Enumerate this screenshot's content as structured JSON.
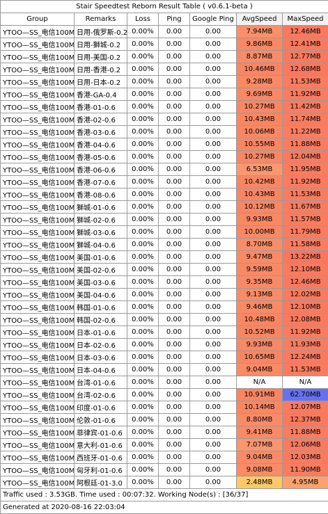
{
  "title": "Stair Speedtest Reborn Result Table ( v0.6.1-beta )",
  "columns": [
    "Group",
    "Remarks",
    "Loss",
    "Ping",
    "Google Ping",
    "AvgSpeed",
    "MaxSpeed"
  ],
  "rows": [
    {
      "group": "YTOO—SS_电信100M",
      "remarks": "日用-俄罗斯-0.2",
      "loss": "0.00%",
      "ping": "0.00",
      "gping": "0.00",
      "avg": "7.94MB",
      "max": "12.46MB",
      "avg_color": "#f9906a",
      "max_color": "#f9795f"
    },
    {
      "group": "YTOO—SS_电信100M",
      "remarks": "日用-獅城-0.2",
      "loss": "0.00%",
      "ping": "0.00",
      "gping": "0.00",
      "avg": "9.86MB",
      "max": "12.41MB",
      "avg_color": "#f98864",
      "max_color": "#f9795f"
    },
    {
      "group": "YTOO—SS_电信100M",
      "remarks": "日用-美国-0.2",
      "loss": "0.00%",
      "ping": "0.00",
      "gping": "0.00",
      "avg": "8.87MB",
      "max": "12.77MB",
      "avg_color": "#f98b67",
      "max_color": "#f9785e"
    },
    {
      "group": "YTOO—SS_电信100M",
      "remarks": "日用-香港-0.2",
      "loss": "0.00%",
      "ping": "0.00",
      "gping": "0.00",
      "avg": "10.46MB",
      "max": "12.68MB",
      "avg_color": "#f98663",
      "max_color": "#f9785e"
    },
    {
      "group": "YTOO—SS_电信100M",
      "remarks": "日用-日本-0.2",
      "loss": "0.00%",
      "ping": "0.00",
      "gping": "0.00",
      "avg": "9.28MB",
      "max": "11.53MB",
      "avg_color": "#f98a66",
      "max_color": "#f97c60"
    },
    {
      "group": "YTOO—SS_电信100M",
      "remarks": "香港-GA-0.4",
      "loss": "0.00%",
      "ping": "0.00",
      "gping": "0.00",
      "avg": "9.69MB",
      "max": "11.92MB",
      "avg_color": "#f98965",
      "max_color": "#f97b60"
    },
    {
      "group": "YTOO—SS_电信100M",
      "remarks": "香港-01-0.6",
      "loss": "0.00%",
      "ping": "0.00",
      "gping": "0.00",
      "avg": "10.27MB",
      "max": "11.42MB",
      "avg_color": "#f98763",
      "max_color": "#f97c61"
    },
    {
      "group": "YTOO—SS_电信100M",
      "remarks": "香港-02-0.6",
      "loss": "0.00%",
      "ping": "0.00",
      "gping": "0.00",
      "avg": "10.43MB",
      "max": "11.74MB",
      "avg_color": "#f98663",
      "max_color": "#f97b60"
    },
    {
      "group": "YTOO—SS_电信100M",
      "remarks": "香港-03-0.6",
      "loss": "0.00%",
      "ping": "0.00",
      "gping": "0.00",
      "avg": "10.06MB",
      "max": "11.22MB",
      "avg_color": "#f98764",
      "max_color": "#f97d61"
    },
    {
      "group": "YTOO—SS_电信100M",
      "remarks": "香港-04-0.6",
      "loss": "0.00%",
      "ping": "0.00",
      "gping": "0.00",
      "avg": "10.55MB",
      "max": "11.88MB",
      "avg_color": "#f98663",
      "max_color": "#f97b60"
    },
    {
      "group": "YTOO—SS_电信100M",
      "remarks": "香港-05-0.6",
      "loss": "0.00%",
      "ping": "0.00",
      "gping": "0.00",
      "avg": "10.27MB",
      "max": "12.04MB",
      "avg_color": "#f98763",
      "max_color": "#f97a5f"
    },
    {
      "group": "YTOO—SS_电信100M",
      "remarks": "香港-06-0.6",
      "loss": "0.00%",
      "ping": "0.00",
      "gping": "0.00",
      "avg": "6.53MB",
      "max": "11.95MB",
      "avg_color": "#fa9870",
      "max_color": "#f97b60"
    },
    {
      "group": "YTOO—SS_电信100M",
      "remarks": "香港-07-0.6",
      "loss": "0.00%",
      "ping": "0.00",
      "gping": "0.00",
      "avg": "10.42MB",
      "max": "11.92MB",
      "avg_color": "#f98663",
      "max_color": "#f97b60"
    },
    {
      "group": "YTOO—SS_电信100M",
      "remarks": "香港-08-0.6",
      "loss": "0.00%",
      "ping": "0.00",
      "gping": "0.00",
      "avg": "10.43MB",
      "max": "11.53MB",
      "avg_color": "#f98663",
      "max_color": "#f97c60"
    },
    {
      "group": "YTOO—SS_电信100M",
      "remarks": "獅城-01-0.6",
      "loss": "0.00%",
      "ping": "0.00",
      "gping": "0.00",
      "avg": "10.12MB",
      "max": "11.67MB",
      "avg_color": "#f98764",
      "max_color": "#f97c60"
    },
    {
      "group": "YTOO—SS_电信100M",
      "remarks": "獅城-02-0.6",
      "loss": "0.00%",
      "ping": "0.00",
      "gping": "0.00",
      "avg": "9.93MB",
      "max": "11.57MB",
      "avg_color": "#f98864",
      "max_color": "#f97c60"
    },
    {
      "group": "YTOO—SS_电信100M",
      "remarks": "獅城-03-0.6",
      "loss": "0.00%",
      "ping": "0.00",
      "gping": "0.00",
      "avg": "10.00MB",
      "max": "11.79MB",
      "avg_color": "#f98864",
      "max_color": "#f97b60"
    },
    {
      "group": "YTOO—SS_电信100M",
      "remarks": "獅城-04-0.6",
      "loss": "0.00%",
      "ping": "0.00",
      "gping": "0.00",
      "avg": "8.70MB",
      "max": "11.58MB",
      "avg_color": "#f98d68",
      "max_color": "#f97c60"
    },
    {
      "group": "YTOO—SS_电信100M",
      "remarks": "美国-01-0.6",
      "loss": "0.00%",
      "ping": "0.00",
      "gping": "0.00",
      "avg": "9.47MB",
      "max": "13.22MB",
      "avg_color": "#f98a65",
      "max_color": "#f9765d"
    },
    {
      "group": "YTOO—SS_电信100M",
      "remarks": "美国-02-0.6",
      "loss": "0.00%",
      "ping": "0.00",
      "gping": "0.00",
      "avg": "9.59MB",
      "max": "12.10MB",
      "avg_color": "#f98965",
      "max_color": "#f97a5f"
    },
    {
      "group": "YTOO—SS_电信100M",
      "remarks": "美国-03-0.6",
      "loss": "0.00%",
      "ping": "0.00",
      "gping": "0.00",
      "avg": "9.35MB",
      "max": "12.46MB",
      "avg_color": "#f98a66",
      "max_color": "#f9795f"
    },
    {
      "group": "YTOO—SS_电信100M",
      "remarks": "美国-04-0.6",
      "loss": "0.00%",
      "ping": "0.00",
      "gping": "0.00",
      "avg": "9.13MB",
      "max": "12.02MB",
      "avg_color": "#f98b66",
      "max_color": "#f97a5f"
    },
    {
      "group": "YTOO—SS_电信100M",
      "remarks": "韩国-01-0.6",
      "loss": "0.00%",
      "ping": "0.00",
      "gping": "0.00",
      "avg": "9.46MB",
      "max": "12.10MB",
      "avg_color": "#f98a65",
      "max_color": "#f97a5f"
    },
    {
      "group": "YTOO—SS_电信100M",
      "remarks": "韩国-02-0.6",
      "loss": "0.00%",
      "ping": "0.00",
      "gping": "0.00",
      "avg": "10.48MB",
      "max": "12.08MB",
      "avg_color": "#f98663",
      "max_color": "#f97a5f"
    },
    {
      "group": "YTOO—SS_电信100M",
      "remarks": "日本-01-0.6",
      "loss": "0.00%",
      "ping": "0.00",
      "gping": "0.00",
      "avg": "10.52MB",
      "max": "11.92MB",
      "avg_color": "#f98663",
      "max_color": "#f97b60"
    },
    {
      "group": "YTOO—SS_电信100M",
      "remarks": "日本-02-0.6",
      "loss": "0.00%",
      "ping": "0.00",
      "gping": "0.00",
      "avg": "9.93MB",
      "max": "11.93MB",
      "avg_color": "#f98864",
      "max_color": "#f97b60"
    },
    {
      "group": "YTOO—SS_电信100M",
      "remarks": "日本-03-0.6",
      "loss": "0.00%",
      "ping": "0.00",
      "gping": "0.00",
      "avg": "10.65MB",
      "max": "12.24MB",
      "avg_color": "#f98662",
      "max_color": "#f97a5f"
    },
    {
      "group": "YTOO—SS_电信100M",
      "remarks": "日本-04-0.6",
      "loss": "0.00%",
      "ping": "0.00",
      "gping": "0.00",
      "avg": "9.04MB",
      "max": "11.53MB",
      "avg_color": "#f98b66",
      "max_color": "#f97c60"
    },
    {
      "group": "YTOO—SS_电信100M",
      "remarks": "台湾-01-0.6",
      "loss": "0.00%",
      "ping": "0.00",
      "gping": "0.00",
      "avg": "N/A",
      "max": "N/A",
      "avg_color": "#ffffff",
      "max_color": "#ffffff"
    },
    {
      "group": "YTOO—SS_电信100M",
      "remarks": "台湾-02-0.6",
      "loss": "0.00%",
      "ping": "0.00",
      "gping": "0.00",
      "avg": "10.91MB",
      "max": "62.70MB",
      "avg_color": "#f98562",
      "max_color": "#6671f0"
    },
    {
      "group": "YTOO—SS_电信100M",
      "remarks": "印度-01-0.6",
      "loss": "0.00%",
      "ping": "0.00",
      "gping": "0.00",
      "avg": "10.14MB",
      "max": "12.07MB",
      "avg_color": "#f98764",
      "max_color": "#f97a5f"
    },
    {
      "group": "YTOO—SS_电信100M",
      "remarks": "伦敦-01-0.6",
      "loss": "0.00%",
      "ping": "0.00",
      "gping": "0.00",
      "avg": "8.80MB",
      "max": "12.37MB",
      "avg_color": "#f98c67",
      "max_color": "#f9795f"
    },
    {
      "group": "YTOO—SS_电信100M",
      "remarks": "菲律宾-01-0.6",
      "loss": "0.00%",
      "ping": "0.00",
      "gping": "0.00",
      "avg": "9.41MB",
      "max": "11.88MB",
      "avg_color": "#f98a65",
      "max_color": "#f97b60"
    },
    {
      "group": "YTOO—SS_电信100M",
      "remarks": "意大利-01-0.6",
      "loss": "0.00%",
      "ping": "0.00",
      "gping": "0.00",
      "avg": "7.07MB",
      "max": "12.06MB",
      "avg_color": "#fa956e",
      "max_color": "#f97a5f"
    },
    {
      "group": "YTOO—SS_电信100M",
      "remarks": "西班牙-01-0.6",
      "loss": "0.00%",
      "ping": "0.00",
      "gping": "0.00",
      "avg": "9.04MB",
      "max": "12.03MB",
      "avg_color": "#f98b66",
      "max_color": "#f97a5f"
    },
    {
      "group": "YTOO—SS_电信100M",
      "remarks": "匈牙利-01-0.6",
      "loss": "0.00%",
      "ping": "0.00",
      "gping": "0.00",
      "avg": "9.08MB",
      "max": "11.90MB",
      "avg_color": "#f98b66",
      "max_color": "#f97b60"
    },
    {
      "group": "YTOO—SS_电信100M",
      "remarks": "阿根廷-01-3.0",
      "loss": "0.00%",
      "ping": "0.00",
      "gping": "0.00",
      "avg": "2.48MB",
      "max": "4.95MB",
      "avg_color": "#fcc966",
      "max_color": "#fba26f"
    }
  ],
  "footer": {
    "traffic": "Traffic used : 3.53GB. Time used : 00:07:32. Working Node(s) : [36/37]",
    "generated": "Generated at 2020-08-16 22:03:04"
  }
}
